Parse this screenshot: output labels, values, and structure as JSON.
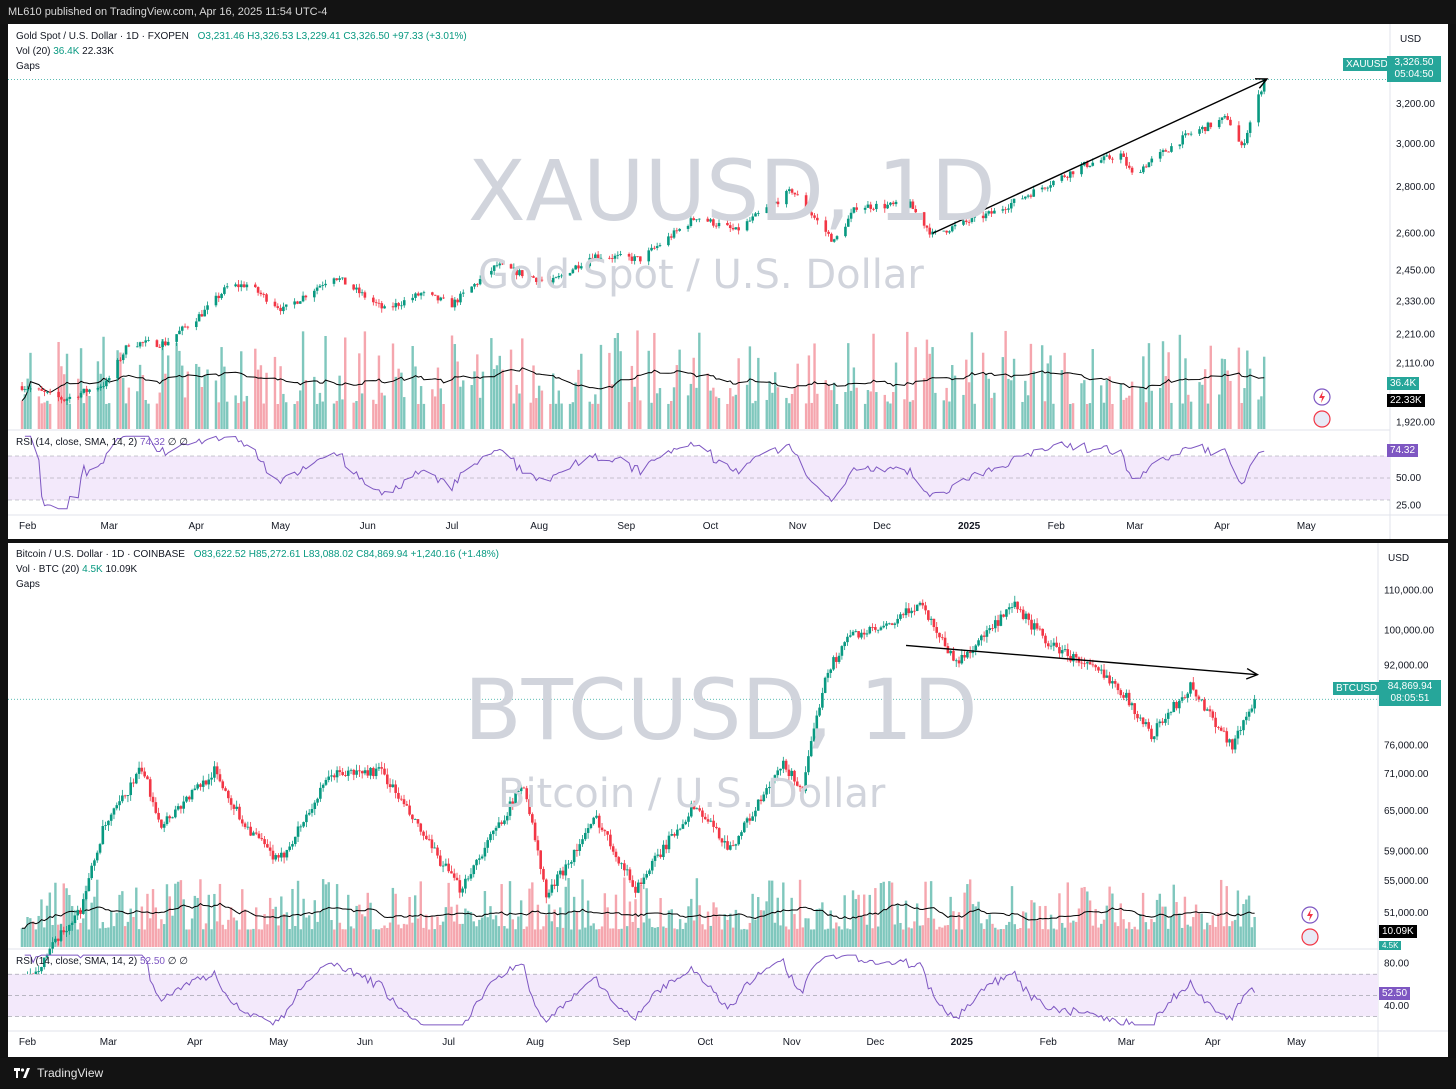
{
  "header": {
    "published": "ML610 published on TradingView.com, Apr 16, 2025 11:54 UTC-4"
  },
  "footer": {
    "brand": "TradingView"
  },
  "colors": {
    "up": "#089981",
    "down": "#f23645",
    "volUp": "#7fc7bd",
    "volDown": "#f5a6ae",
    "rsi": "#7e57c2",
    "rsiBand": "#f3e9fb",
    "accent": "#26a69a"
  },
  "panels": [
    {
      "symbol_line": "Gold Spot / U.S. Dollar · 1D · FXOPEN",
      "ohlc": {
        "o": "O3,231.46",
        "h": "H3,326.53",
        "l": "L3,229.41",
        "c": "C3,326.50",
        "chg": "+97.33 (+3.01%)"
      },
      "vol_label": "Vol (20)",
      "vol_a": "36.4K",
      "vol_b": "22.33K",
      "gaps": "Gaps",
      "rsi_label": "RSI (14, close, SMA, 14, 2)",
      "rsi_val": "74.32",
      "rsi_extra": "∅ ∅",
      "watermark_main": "XAUUSD, 1D",
      "watermark_sub": "Gold Spot / U.S. Dollar",
      "currency": "USD",
      "price_tag": {
        "symbol": "XAUUSD",
        "price": "3,326.50",
        "countdown": "05:04:50"
      },
      "vol_tags": [
        "36.4K",
        "22.33K"
      ],
      "rsi_tag": "74.32",
      "price_ticks": [
        "3,200.00",
        "3,000.00",
        "2,800.00",
        "2,600.00",
        "2,450.00",
        "2,330.00",
        "2,210.00",
        "2,110.00",
        "1,920.00"
      ],
      "rsi_ticks": [
        "50.00",
        "25.00"
      ],
      "x_labels": [
        "Feb",
        "Mar",
        "Apr",
        "May",
        "Jun",
        "Jul",
        "Aug",
        "Sep",
        "Oct",
        "Nov",
        "Dec",
        "2025",
        "Feb",
        "Mar",
        "Apr",
        "May"
      ]
    },
    {
      "symbol_line": "Bitcoin / U.S. Dollar · 1D · COINBASE",
      "ohlc": {
        "o": "O83,622.52",
        "h": "H85,272.61",
        "l": "L83,088.02",
        "c": "C84,869.94",
        "chg": "+1,240.16 (+1.48%)"
      },
      "vol_label": "Vol · BTC (20)",
      "vol_a": "4.5K",
      "vol_b": "10.09K",
      "gaps": "Gaps",
      "rsi_label": "RSI (14, close, SMA, 14, 2)",
      "rsi_val": "52.50",
      "rsi_extra": "∅ ∅",
      "watermark_main": "BTCUSD, 1D",
      "watermark_sub": "Bitcoin / U.S. Dollar",
      "currency": "USD",
      "price_tag": {
        "symbol": "BTCUSD",
        "price": "84,869.94",
        "countdown": "08:05:51"
      },
      "vol_tags": [
        "10.09K",
        "4.5K"
      ],
      "rsi_tag": "52.50",
      "price_ticks": [
        "110,000.00",
        "100,000.00",
        "92,000.00",
        "76,000.00",
        "71,000.00",
        "65,000.00",
        "59,000.00",
        "55,000.00",
        "51,000.00"
      ],
      "rsi_ticks": [
        "80.00",
        "40.00"
      ],
      "x_labels": [
        "Feb",
        "Mar",
        "Apr",
        "May",
        "Jun",
        "Jul",
        "Aug",
        "Sep",
        "Oct",
        "Nov",
        "Dec",
        "2025",
        "Feb",
        "Mar",
        "Apr",
        "May"
      ]
    }
  ],
  "chart_data": [
    {
      "type": "candlestick",
      "title": "XAUUSD, 1D — Gold Spot / U.S. Dollar",
      "x_unit": "date",
      "x_range": [
        "2024-01-25",
        "2025-05-08"
      ],
      "y_scale": "log",
      "ylim": [
        1900,
        3400
      ],
      "close_path": [
        [
          "2024-01-30",
          2035
        ],
        [
          "2024-02-14",
          1992
        ],
        [
          "2024-02-29",
          2045
        ],
        [
          "2024-03-08",
          2180
        ],
        [
          "2024-03-21",
          2180
        ],
        [
          "2024-04-04",
          2295
        ],
        [
          "2024-04-12",
          2385
        ],
        [
          "2024-04-19",
          2395
        ],
        [
          "2024-05-02",
          2300
        ],
        [
          "2024-05-20",
          2430
        ],
        [
          "2024-06-07",
          2300
        ],
        [
          "2024-06-20",
          2360
        ],
        [
          "2024-07-01",
          2320
        ],
        [
          "2024-07-17",
          2470
        ],
        [
          "2024-08-05",
          2400
        ],
        [
          "2024-08-20",
          2510
        ],
        [
          "2024-09-06",
          2495
        ],
        [
          "2024-09-26",
          2670
        ],
        [
          "2024-10-10",
          2610
        ],
        [
          "2024-10-30",
          2785
        ],
        [
          "2024-11-14",
          2565
        ],
        [
          "2024-11-22",
          2715
        ],
        [
          "2024-12-11",
          2720
        ],
        [
          "2024-12-19",
          2595
        ],
        [
          "2025-01-10",
          2690
        ],
        [
          "2025-02-11",
          2900
        ],
        [
          "2025-02-24",
          2950
        ],
        [
          "2025-02-28",
          2857
        ],
        [
          "2025-03-20",
          3045
        ],
        [
          "2025-04-03",
          3130
        ],
        [
          "2025-04-08",
          2980
        ],
        [
          "2025-04-16",
          3326.5
        ]
      ],
      "volume_units": "contracts",
      "volume_sma": {
        "period": 20,
        "last": 22330
      },
      "volume_last": 36400,
      "rsi": {
        "period": 14,
        "last": 74.32,
        "band": [
          30,
          70
        ]
      },
      "annotations": [
        {
          "type": "trend_arrow",
          "from": [
            "2024-12-19",
            2600
          ],
          "to": [
            "2025-04-17",
            3330
          ]
        }
      ]
    },
    {
      "type": "candlestick",
      "title": "BTCUSD, 1D — Bitcoin / U.S. Dollar",
      "x_unit": "date",
      "x_range": [
        "2024-01-25",
        "2025-05-08"
      ],
      "y_scale": "log",
      "ylim": [
        47000,
        112000
      ],
      "close_path": [
        [
          "2024-01-30",
          42500
        ],
        [
          "2024-02-10",
          47000
        ],
        [
          "2024-02-20",
          51500
        ],
        [
          "2024-02-28",
          62000
        ],
        [
          "2024-03-13",
          72000
        ],
        [
          "2024-03-20",
          63000
        ],
        [
          "2024-04-08",
          71500
        ],
        [
          "2024-04-18",
          63500
        ],
        [
          "2024-05-01",
          57500
        ],
        [
          "2024-05-20",
          71000
        ],
        [
          "2024-06-07",
          71500
        ],
        [
          "2024-06-24",
          60000
        ],
        [
          "2024-07-05",
          54000
        ],
        [
          "2024-07-28",
          69500
        ],
        [
          "2024-08-05",
          53000
        ],
        [
          "2024-08-23",
          64000
        ],
        [
          "2024-09-06",
          54000
        ],
        [
          "2024-09-27",
          66000
        ],
        [
          "2024-10-10",
          59500
        ],
        [
          "2024-10-29",
          72500
        ],
        [
          "2024-11-05",
          68500
        ],
        [
          "2024-11-13",
          90000
        ],
        [
          "2024-11-22",
          99000
        ],
        [
          "2024-12-05",
          100500
        ],
        [
          "2024-12-17",
          107000
        ],
        [
          "2024-12-30",
          92500
        ],
        [
          "2025-01-20",
          106000
        ],
        [
          "2025-02-01",
          97000
        ],
        [
          "2025-02-25",
          88500
        ],
        [
          "2025-03-10",
          78000
        ],
        [
          "2025-03-24",
          87500
        ],
        [
          "2025-04-08",
          76000
        ],
        [
          "2025-04-16",
          84869.94
        ]
      ],
      "volume_units": "BTC",
      "volume_sma": {
        "period": 20,
        "last": 10090
      },
      "volume_last": 4500,
      "rsi": {
        "period": 14,
        "last": 52.5,
        "band": [
          30,
          70
        ]
      },
      "annotations": [
        {
          "type": "trend_arrow",
          "from": [
            "2024-12-12",
            96500
          ],
          "to": [
            "2025-04-17",
            90000
          ]
        }
      ]
    }
  ]
}
